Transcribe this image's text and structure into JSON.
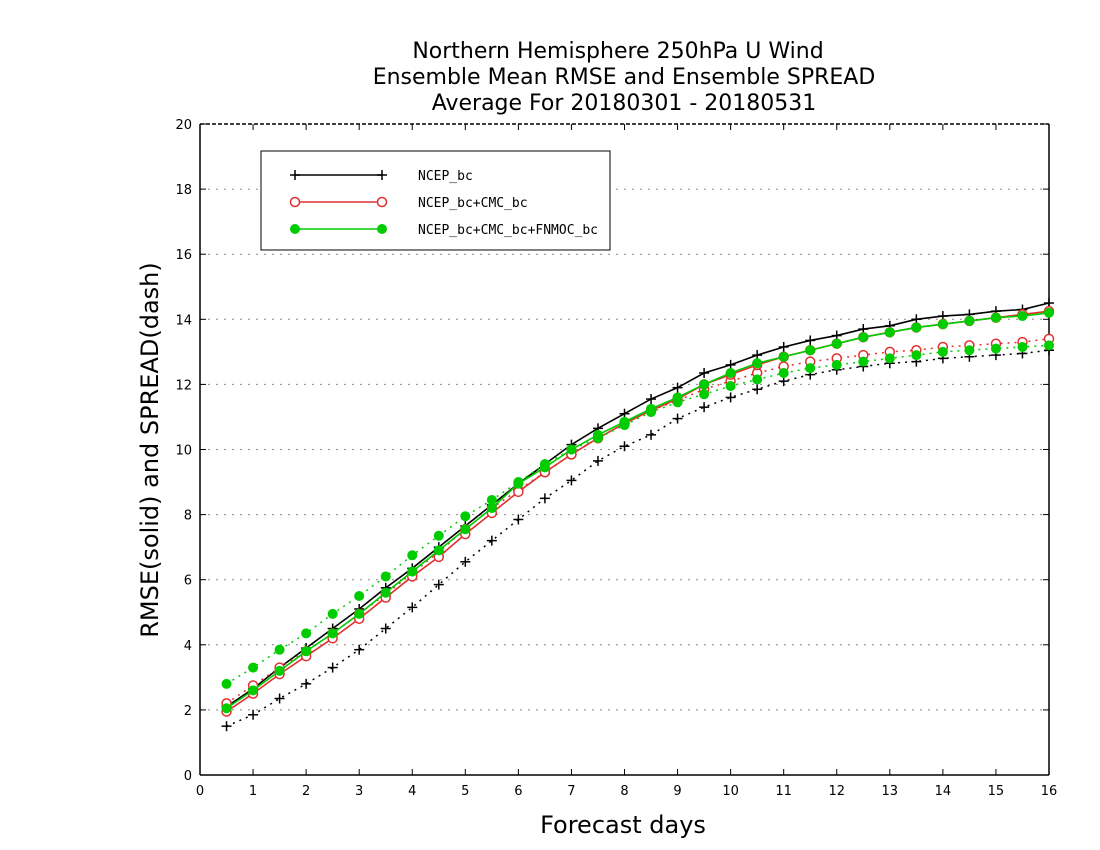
{
  "chart_data": {
    "type": "line",
    "title_lines": [
      "Northern Hemisphere 250hPa U Wind",
      "Ensemble Mean RMSE and Ensemble SPREAD",
      "Average For 20180301 - 20180531"
    ],
    "xlabel": "Forecast days",
    "ylabel": "RMSE(solid) and SPREAD(dash)",
    "xlim": [
      0,
      16
    ],
    "ylim": [
      0,
      20
    ],
    "xticks": [
      0,
      1,
      2,
      3,
      4,
      5,
      6,
      7,
      8,
      9,
      10,
      11,
      12,
      13,
      14,
      15,
      16
    ],
    "yticks": [
      0,
      2,
      4,
      6,
      8,
      10,
      12,
      14,
      16,
      18,
      20
    ],
    "grid": "dotted horizontal",
    "legend_position": "top-left",
    "x": [
      0.5,
      1,
      1.5,
      2,
      2.5,
      3,
      3.5,
      4,
      4.5,
      5,
      5.5,
      6,
      6.5,
      7,
      7.5,
      8,
      8.5,
      9,
      9.5,
      10,
      10.5,
      11,
      11.5,
      12,
      12.5,
      13,
      13.5,
      14,
      14.5,
      15,
      15.5,
      16
    ],
    "series": [
      {
        "name": "NCEP_bc",
        "color": "#000000",
        "marker": "plus",
        "rmse": [
          2.1,
          2.65,
          3.3,
          3.9,
          4.5,
          5.1,
          5.75,
          6.35,
          7.0,
          7.65,
          8.3,
          8.95,
          9.55,
          10.15,
          10.65,
          11.1,
          11.55,
          11.9,
          12.35,
          12.6,
          12.9,
          13.15,
          13.35,
          13.5,
          13.7,
          13.8,
          14.0,
          14.1,
          14.15,
          14.25,
          14.3,
          14.5
        ],
        "spread": [
          1.5,
          1.85,
          2.35,
          2.8,
          3.3,
          3.85,
          4.5,
          5.15,
          5.85,
          6.55,
          7.2,
          7.85,
          8.5,
          9.05,
          9.65,
          10.1,
          10.45,
          10.95,
          11.3,
          11.6,
          11.85,
          12.1,
          12.3,
          12.45,
          12.55,
          12.65,
          12.7,
          12.8,
          12.85,
          12.9,
          12.95,
          13.05
        ]
      },
      {
        "name": "NCEP_bc+CMC_bc",
        "color": "#e03030",
        "marker": "open-circle",
        "rmse": [
          1.95,
          2.5,
          3.1,
          3.65,
          4.2,
          4.8,
          5.45,
          6.1,
          6.7,
          7.4,
          8.05,
          8.7,
          9.3,
          9.85,
          10.35,
          10.8,
          11.2,
          11.55,
          12.0,
          12.3,
          12.6,
          12.85,
          13.05,
          13.25,
          13.45,
          13.6,
          13.75,
          13.85,
          13.95,
          14.05,
          14.15,
          14.25
        ],
        "spread": [
          2.2,
          2.75,
          3.3,
          3.8,
          4.35,
          4.95,
          5.55,
          6.2,
          6.85,
          7.55,
          8.2,
          8.75,
          9.3,
          9.85,
          10.35,
          10.8,
          11.2,
          11.5,
          11.85,
          12.1,
          12.35,
          12.55,
          12.7,
          12.8,
          12.9,
          13.0,
          13.05,
          13.15,
          13.2,
          13.25,
          13.3,
          13.4
        ]
      },
      {
        "name": "NCEP_bc+CMC_bc+FNMOC_bc",
        "color": "#00cc00",
        "marker": "filled-circle",
        "rmse": [
          2.05,
          2.6,
          3.2,
          3.8,
          4.35,
          4.95,
          5.6,
          6.25,
          6.9,
          7.55,
          8.2,
          8.95,
          9.45,
          10.0,
          10.45,
          10.85,
          11.25,
          11.6,
          12.0,
          12.35,
          12.65,
          12.85,
          13.05,
          13.25,
          13.45,
          13.6,
          13.75,
          13.85,
          13.95,
          14.05,
          14.1,
          14.2
        ],
        "spread": [
          2.8,
          3.3,
          3.85,
          4.35,
          4.95,
          5.5,
          6.1,
          6.75,
          7.35,
          7.95,
          8.45,
          9.0,
          9.55,
          10.0,
          10.35,
          10.75,
          11.15,
          11.45,
          11.7,
          11.95,
          12.15,
          12.35,
          12.5,
          12.6,
          12.7,
          12.8,
          12.9,
          13.0,
          13.05,
          13.1,
          13.15,
          13.2
        ]
      }
    ]
  }
}
